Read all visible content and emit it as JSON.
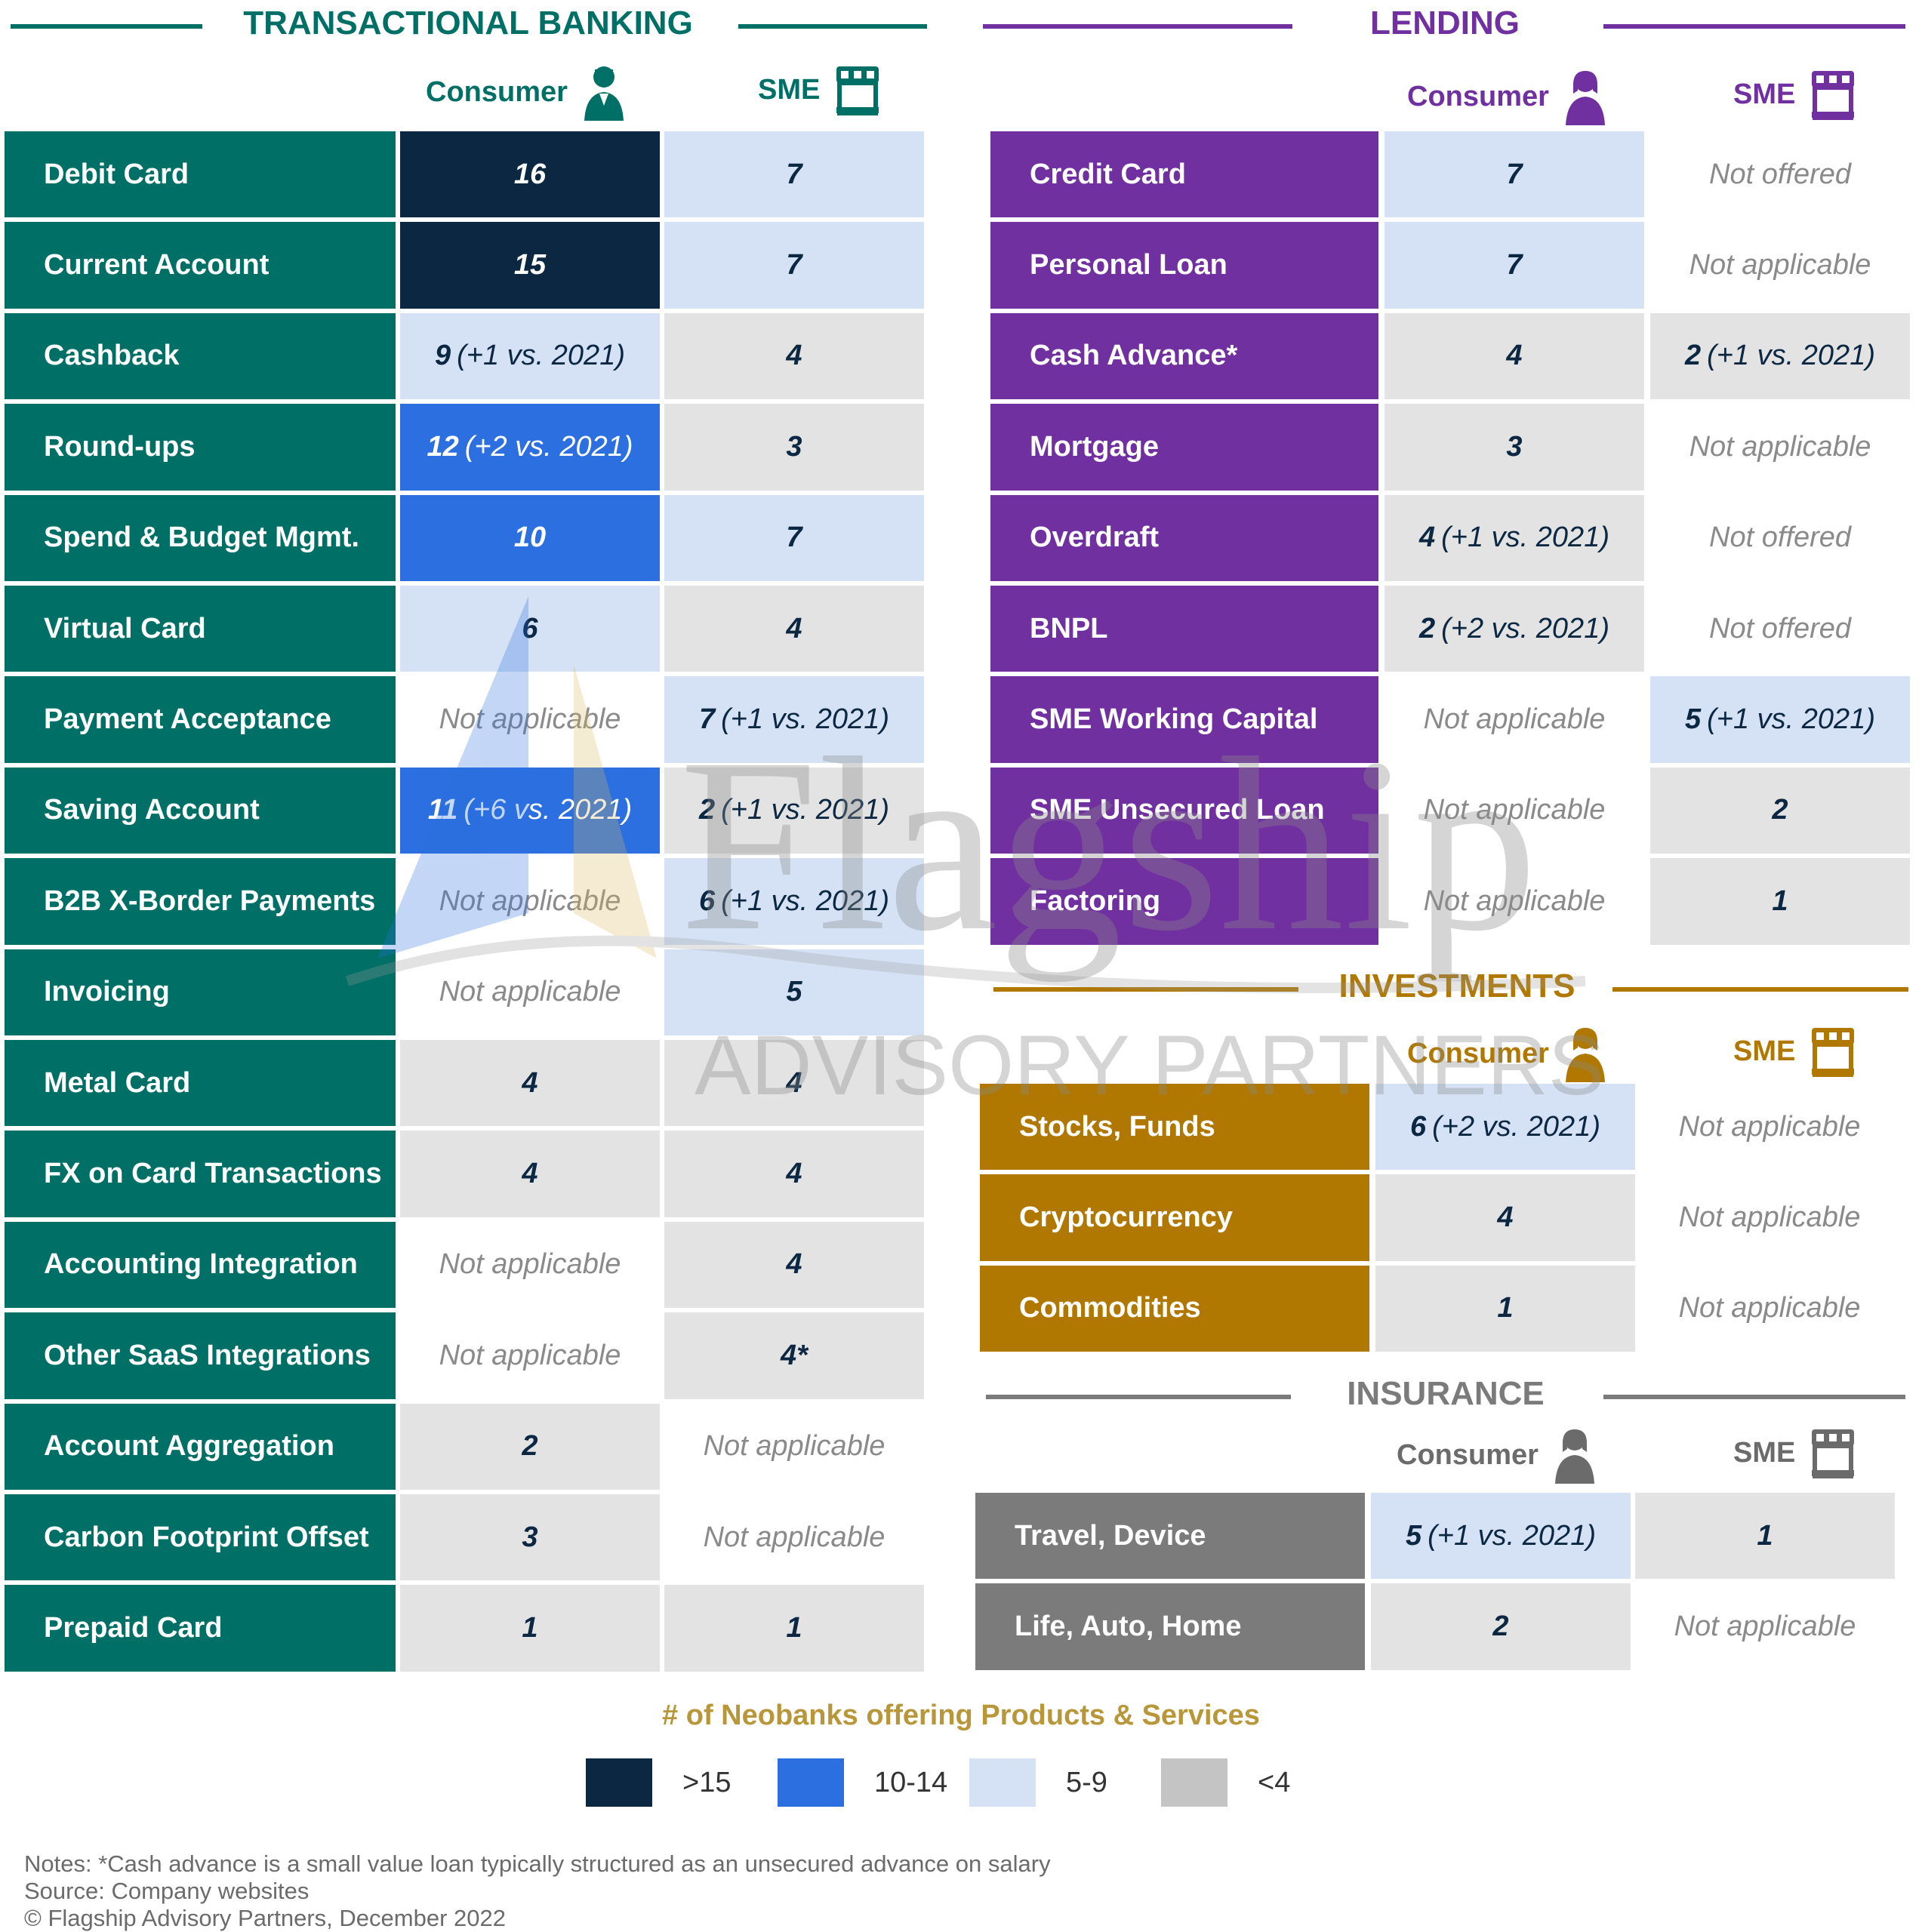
{
  "colors": {
    "transactional": "#007066",
    "lending": "#7030a0",
    "investments": "#b07800",
    "insurance": "#7b7b7b",
    "gt15": "#0b2742",
    "r10_14": "#2b6fe0",
    "r5_9": "#d5e2f6",
    "lt4": "#e3e3e3"
  },
  "sections": {
    "transactional": {
      "title": "TRANSACTIONAL BANKING",
      "consumer": "Consumer",
      "sme": "SME"
    },
    "lending": {
      "title": "LENDING",
      "consumer": "Consumer",
      "sme": "SME"
    },
    "investments": {
      "title": "INVESTMENTS",
      "consumer": "Consumer",
      "sme": "SME"
    },
    "insurance": {
      "title": "INSURANCE",
      "consumer": "Consumer",
      "sme": "SME"
    }
  },
  "chart_data": {
    "type": "table",
    "title": "# of Neobanks offering Products & Services",
    "legend": [
      {
        "label": ">15",
        "color": "#0b2742"
      },
      {
        "label": "10-14",
        "color": "#2b6fe0"
      },
      {
        "label": "5-9",
        "color": "#d5e2f6"
      },
      {
        "label": "<4",
        "color": "#e3e3e3"
      }
    ],
    "transactional": [
      {
        "product": "Debit Card",
        "consumer": {
          "value": 16,
          "change": ""
        },
        "sme": {
          "value": 7,
          "change": ""
        }
      },
      {
        "product": "Current Account",
        "consumer": {
          "value": 15,
          "change": ""
        },
        "sme": {
          "value": 7,
          "change": ""
        }
      },
      {
        "product": "Cashback",
        "consumer": {
          "value": 9,
          "change": "(+1 vs. 2021)"
        },
        "sme": {
          "value": 4,
          "change": ""
        }
      },
      {
        "product": "Round-ups",
        "consumer": {
          "value": 12,
          "change": "(+2 vs. 2021)"
        },
        "sme": {
          "value": 3,
          "change": ""
        }
      },
      {
        "product": "Spend & Budget Mgmt.",
        "consumer": {
          "value": 10,
          "change": ""
        },
        "sme": {
          "value": 7,
          "change": ""
        }
      },
      {
        "product": "Virtual Card",
        "consumer": {
          "value": 6,
          "change": ""
        },
        "sme": {
          "value": 4,
          "change": ""
        }
      },
      {
        "product": "Payment Acceptance",
        "consumer": {
          "text": "Not applicable"
        },
        "sme": {
          "value": 7,
          "change": "(+1 vs. 2021)"
        }
      },
      {
        "product": "Saving Account",
        "consumer": {
          "value": 11,
          "change": "(+6 vs. 2021)"
        },
        "sme": {
          "value": 2,
          "change": "(+1 vs. 2021)"
        }
      },
      {
        "product": "B2B X-Border Payments",
        "consumer": {
          "text": "Not applicable"
        },
        "sme": {
          "value": 6,
          "change": "(+1 vs. 2021)"
        }
      },
      {
        "product": "Invoicing",
        "consumer": {
          "text": "Not applicable"
        },
        "sme": {
          "value": 5,
          "change": ""
        }
      },
      {
        "product": "Metal Card",
        "consumer": {
          "value": 4,
          "change": ""
        },
        "sme": {
          "value": 4,
          "change": ""
        }
      },
      {
        "product": "FX on Card Transactions",
        "consumer": {
          "value": 4,
          "change": ""
        },
        "sme": {
          "value": 4,
          "change": ""
        }
      },
      {
        "product": "Accounting Integration",
        "consumer": {
          "text": "Not applicable"
        },
        "sme": {
          "value": 4,
          "change": ""
        }
      },
      {
        "product": "Other SaaS Integrations",
        "consumer": {
          "text": "Not applicable"
        },
        "sme": {
          "value": 4,
          "change": "",
          "suffix": "*"
        }
      },
      {
        "product": "Account Aggregation",
        "consumer": {
          "value": 2,
          "change": ""
        },
        "sme": {
          "text": "Not applicable"
        }
      },
      {
        "product": "Carbon Footprint Offset",
        "consumer": {
          "value": 3,
          "change": ""
        },
        "sme": {
          "text": "Not applicable"
        }
      },
      {
        "product": "Prepaid Card",
        "consumer": {
          "value": 1,
          "change": ""
        },
        "sme": {
          "value": 1,
          "change": ""
        }
      }
    ],
    "lending": [
      {
        "product": "Credit Card",
        "consumer": {
          "value": 7,
          "change": ""
        },
        "sme": {
          "text": "Not offered"
        }
      },
      {
        "product": "Personal Loan",
        "consumer": {
          "value": 7,
          "change": ""
        },
        "sme": {
          "text": "Not applicable"
        }
      },
      {
        "product": "Cash Advance*",
        "consumer": {
          "value": 4,
          "change": ""
        },
        "sme": {
          "value": 2,
          "change": "(+1 vs. 2021)"
        }
      },
      {
        "product": "Mortgage",
        "consumer": {
          "value": 3,
          "change": ""
        },
        "sme": {
          "text": "Not applicable"
        }
      },
      {
        "product": "Overdraft",
        "consumer": {
          "value": 4,
          "change": "(+1 vs. 2021)"
        },
        "sme": {
          "text": "Not offered"
        }
      },
      {
        "product": "BNPL",
        "consumer": {
          "value": 2,
          "change": "(+2 vs. 2021)"
        },
        "sme": {
          "text": "Not offered"
        }
      },
      {
        "product": "SME Working Capital",
        "consumer": {
          "text": "Not applicable"
        },
        "sme": {
          "value": 5,
          "change": "(+1 vs. 2021)"
        }
      },
      {
        "product": "SME Unsecured Loan",
        "consumer": {
          "text": "Not applicable"
        },
        "sme": {
          "value": 2,
          "change": ""
        }
      },
      {
        "product": "Factoring",
        "consumer": {
          "text": "Not applicable"
        },
        "sme": {
          "value": 1,
          "change": ""
        }
      }
    ],
    "investments": [
      {
        "product": "Stocks, Funds",
        "consumer": {
          "value": 6,
          "change": "(+2 vs. 2021)"
        },
        "sme": {
          "text": "Not applicable"
        }
      },
      {
        "product": "Cryptocurrency",
        "consumer": {
          "value": 4,
          "change": ""
        },
        "sme": {
          "text": "Not applicable"
        }
      },
      {
        "product": "Commodities",
        "consumer": {
          "value": 1,
          "change": ""
        },
        "sme": {
          "text": "Not applicable"
        }
      }
    ],
    "insurance": [
      {
        "product": "Travel, Device",
        "consumer": {
          "value": 5,
          "change": "(+1 vs. 2021)"
        },
        "sme": {
          "value": 1,
          "change": ""
        }
      },
      {
        "product": "Life, Auto, Home",
        "consumer": {
          "value": 2,
          "change": ""
        },
        "sme": {
          "text": "Not applicable"
        }
      }
    ]
  },
  "watermark": {
    "brand": "Flagship",
    "tagline": "ADVISORY PARTNERS"
  },
  "footnotes": {
    "notes": "Notes: *Cash advance is a small value loan typically structured as an unsecured advance on salary",
    "source": "Source: Company websites",
    "copyright": "© Flagship Advisory Partners, December 2022"
  }
}
